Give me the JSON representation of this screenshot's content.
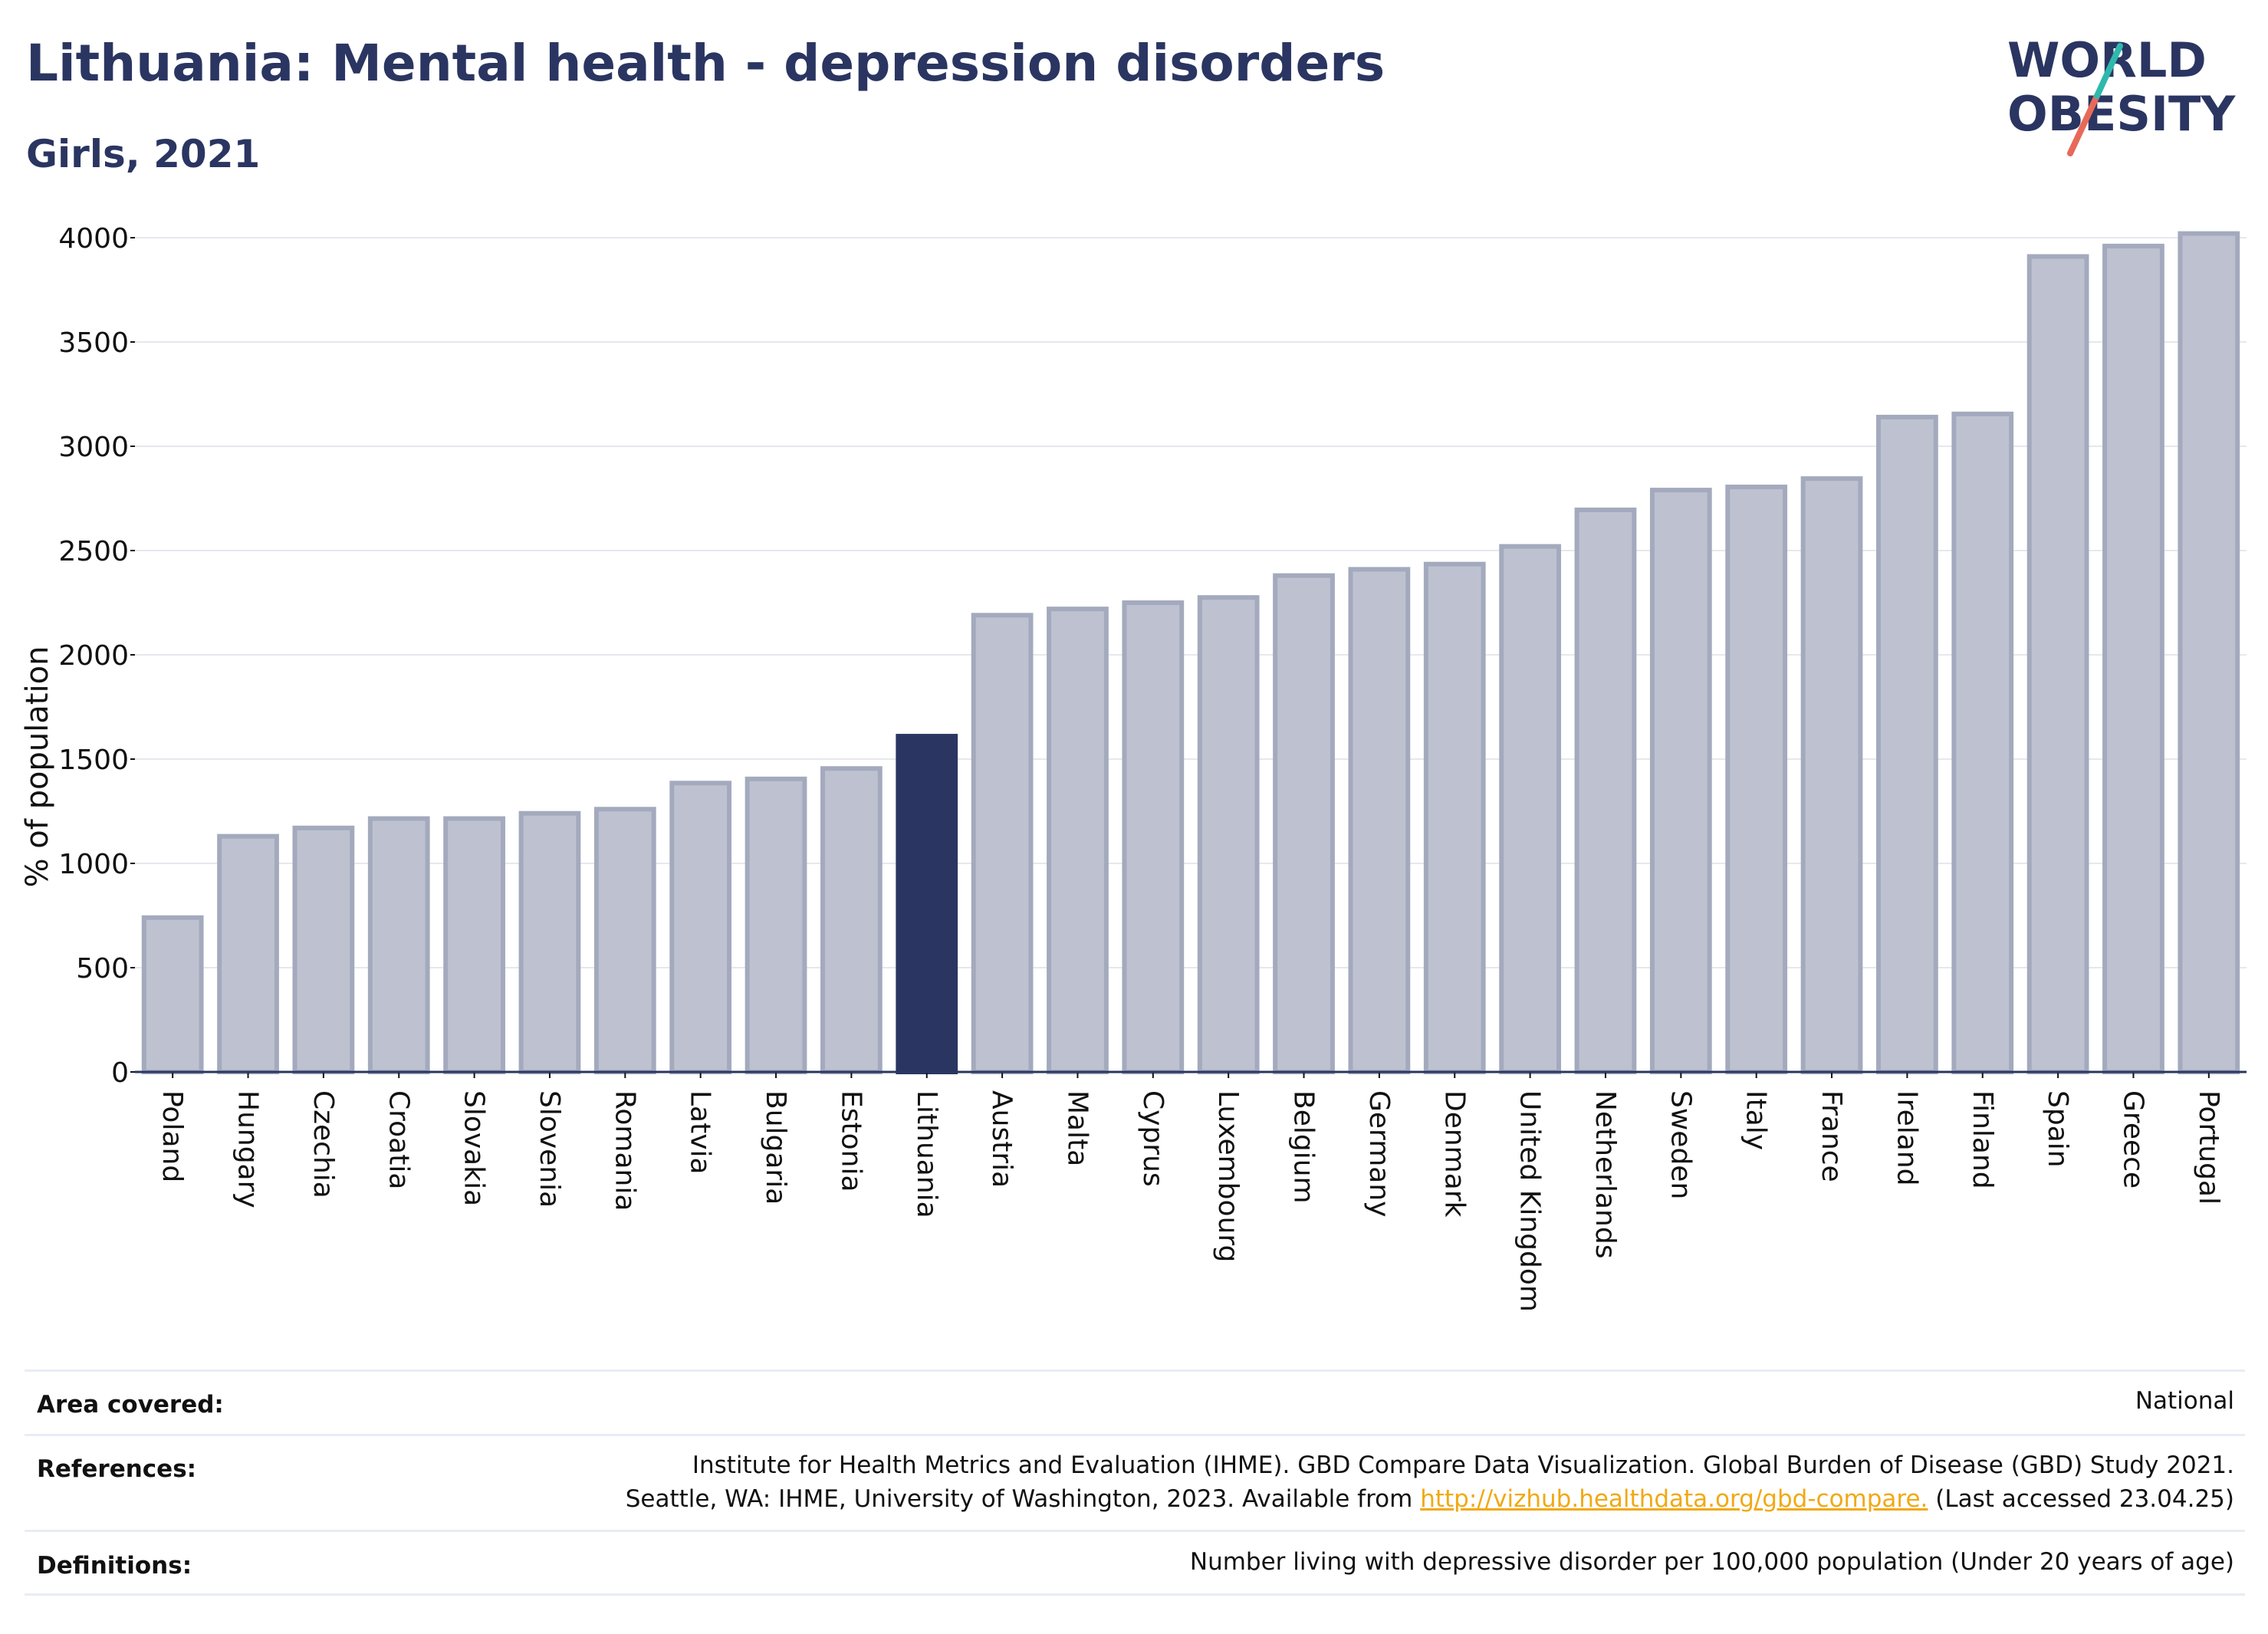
{
  "header": {
    "title": "Lithuania: Mental health - depression disorders",
    "subtitle": "Girls, 2021"
  },
  "logo": {
    "line1": "WORLD",
    "line2": "OBESITY"
  },
  "colors": {
    "highlight": "#2a3561",
    "bar_fill": "#bec2d0",
    "bar_stroke": "#a4aabd",
    "text": "#2a3561",
    "link": "#f0a914"
  },
  "chart_data": {
    "type": "bar",
    "ylabel": "% of population",
    "ylim": [
      0,
      4100
    ],
    "yticks": [
      0,
      500,
      1000,
      1500,
      2000,
      2500,
      3000,
      3500,
      4000
    ],
    "grid": true,
    "highlight": "Lithuania",
    "categories": [
      "Poland",
      "Hungary",
      "Czechia",
      "Croatia",
      "Slovakia",
      "Slovenia",
      "Romania",
      "Latvia",
      "Bulgaria",
      "Estonia",
      "Lithuania",
      "Austria",
      "Malta",
      "Cyprus",
      "Luxembourg",
      "Belgium",
      "Germany",
      "Denmark",
      "United Kingdom",
      "Netherlands",
      "Sweden",
      "Italy",
      "France",
      "Ireland",
      "Finland",
      "Spain",
      "Greece",
      "Portugal"
    ],
    "values": [
      740,
      1130,
      1170,
      1215,
      1215,
      1240,
      1260,
      1385,
      1405,
      1455,
      1610,
      2190,
      2220,
      2250,
      2275,
      2380,
      2410,
      2435,
      2520,
      2695,
      2790,
      2805,
      2845,
      3140,
      3155,
      3910,
      3960,
      4020
    ]
  },
  "info": {
    "area_label": "Area covered:",
    "area_value": "National",
    "references_label": "References:",
    "references_line1": "Institute for Health Metrics and Evaluation (IHME). GBD Compare Data Visualization. Global Burden of Disease (GBD) Study 2021.",
    "references_line2_pre": "Seattle, WA: IHME, University of Washington, 2023. Available from ",
    "references_link": "http://vizhub.healthdata.org/gbd-compare.",
    "references_line2_post": " (Last accessed 23.04.25)",
    "definitions_label": "Definitions:",
    "definitions_value": "Number living with depressive disorder per 100,000 population (Under 20 years of age)"
  }
}
